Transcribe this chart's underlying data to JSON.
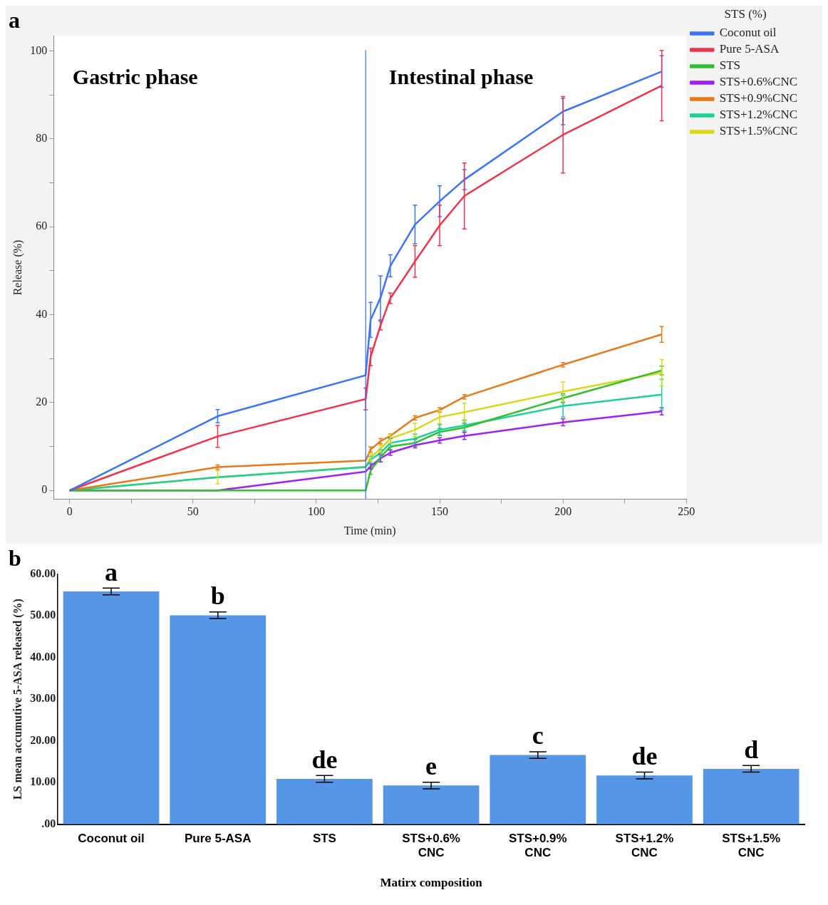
{
  "chart_data": [
    {
      "type": "line",
      "title": "a",
      "xlabel": "Time (min)",
      "ylabel": "Release (%)",
      "legend_title": "STS (%)",
      "legend": "right",
      "grid": false,
      "line_style": "solid",
      "x": [
        0,
        60,
        120,
        122,
        126,
        130,
        140,
        150,
        160,
        200,
        240
      ],
      "xlim": [
        -6.5,
        250
      ],
      "xticks": [
        0,
        {
          "value": 25,
          "label": null
        },
        50,
        {
          "value": 75,
          "label": null
        },
        100,
        {
          "value": 125,
          "label": null
        },
        150,
        {
          "value": 175,
          "label": null
        },
        200,
        {
          "value": 225,
          "label": null
        },
        250
      ],
      "ylim": [
        -2,
        103.4
      ],
      "yticks": [
        0,
        {
          "value": 10,
          "label": null
        },
        20,
        {
          "value": 30,
          "label": null
        },
        40,
        {
          "value": 50,
          "label": null
        },
        60,
        {
          "value": 70,
          "label": null
        },
        80,
        {
          "value": 90,
          "label": null
        },
        100
      ],
      "annotations": [
        "Gastric phase",
        "Intestinal phase"
      ],
      "ref_lines": [
        {
          "axis": "x",
          "value": 120,
          "color": "#3a6fd8"
        }
      ],
      "series": [
        {
          "name": "Coconut oil",
          "color": "#3b74f5",
          "values": [
            0,
            16.9,
            26.2,
            38.8,
            43.8,
            51.1,
            60.5,
            65.8,
            70.7,
            86.2,
            95.3
          ],
          "errors": [
            null,
            1.5,
            null,
            4,
            5,
            2.5,
            4.4,
            3.5,
            2.3,
            3,
            3.6
          ]
        },
        {
          "name": "Pure 5-ASA",
          "color": "#f0334a",
          "values": [
            0,
            12.3,
            20.8,
            30.4,
            37.5,
            43.7,
            52.1,
            60.3,
            67,
            80.9,
            92.1
          ],
          "errors": [
            null,
            2.5,
            2.5,
            2,
            1,
            1.2,
            3.6,
            4.6,
            7.5,
            8.7,
            8
          ]
        },
        {
          "name": "STS",
          "color": "#2fbf2f",
          "values": [
            0,
            0,
            0,
            4.5,
            7.5,
            10,
            10.8,
            13.3,
            14.3,
            21,
            27.3
          ],
          "errors": [
            null,
            null,
            null,
            0.8,
            1,
            0.8,
            0.8,
            0.8,
            1,
            1,
            1
          ]
        },
        {
          "name": "STS+0.6%CNC",
          "color": "#a020f0",
          "values": [
            0,
            0,
            4.3,
            5.5,
            7.3,
            8.6,
            10.3,
            11.4,
            12.4,
            15.5,
            18
          ],
          "errors": [
            null,
            null,
            null,
            0.6,
            0.8,
            0.6,
            0.6,
            0.6,
            0.8,
            0.8,
            0.8
          ]
        },
        {
          "name": "STS+0.9%CNC",
          "color": "#e8791a",
          "values": [
            0,
            5.3,
            6.8,
            9.3,
            11.2,
            12.4,
            16.5,
            18.3,
            21.3,
            28.6,
            35.5
          ],
          "errors": [
            null,
            0.5,
            null,
            0.6,
            0.6,
            0.5,
            0.5,
            0.5,
            0.5,
            0.5,
            1.8
          ]
        },
        {
          "name": "STS+1.2%CNC",
          "color": "#1fcf9a",
          "values": [
            0,
            3,
            5.3,
            7,
            8.5,
            10.8,
            11.8,
            13.8,
            14.8,
            19.2,
            21.8
          ],
          "errors": [
            null,
            null,
            null,
            0.8,
            0.8,
            1,
            1,
            1.2,
            1.2,
            2.5,
            3.5
          ]
        },
        {
          "name": "STS+1.5%CNC",
          "color": "#d8d81a",
          "values": [
            0,
            3,
            5.4,
            7.5,
            9.5,
            11.8,
            13.8,
            16.7,
            17.8,
            22.5,
            26.8
          ],
          "errors": [
            null,
            1.5,
            null,
            0.8,
            0.8,
            1,
            1.5,
            1.5,
            2,
            2.2,
            3
          ]
        }
      ]
    },
    {
      "type": "bar",
      "title": "b",
      "xlabel": "Matirx composition",
      "ylabel": "LS mean accumutive 5-ASA released (%)",
      "grid": false,
      "legend": false,
      "categories": [
        "Coconut oil",
        "Pure 5-ASA",
        "STS",
        "STS+0.6%\nCNC",
        "STS+0.9%\nCNC",
        "STS+1.2%\nCNC",
        "STS+1.5%\nCNC"
      ],
      "color": "#5596e6",
      "values": [
        55.8,
        50.1,
        10.9,
        9.3,
        16.6,
        11.7,
        13.3
      ],
      "errors": [
        0.8,
        0.8,
        0.8,
        0.8,
        0.8,
        0.8,
        0.8
      ],
      "ylim": [
        0,
        60
      ],
      "yticks": [
        {
          "value": 0,
          "label": ".00"
        },
        {
          "value": 10,
          "label": "10.00"
        },
        {
          "value": 20,
          "label": "20.00"
        },
        {
          "value": 30,
          "label": "30.00"
        },
        {
          "value": 40,
          "label": "40.00"
        },
        {
          "value": 50,
          "label": "50.00"
        },
        {
          "value": 60,
          "label": "60.00"
        }
      ],
      "annotations": [
        "a",
        "b",
        "de",
        "e",
        "c",
        "de",
        "d"
      ]
    }
  ]
}
